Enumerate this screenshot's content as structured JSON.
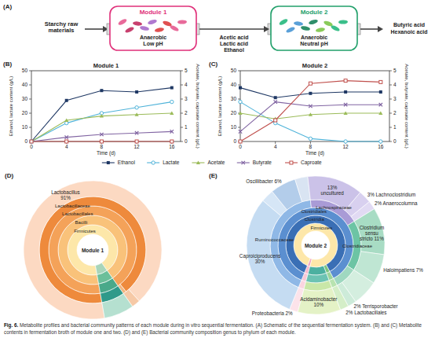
{
  "panel_a": {
    "panel_label": "(A)",
    "input": "Starchy raw materials",
    "modules": [
      {
        "title": "Module 1",
        "color": "#e0307a",
        "conditions": [
          "Anaerobic",
          "Low pH"
        ]
      },
      {
        "title": "Module 2",
        "color": "#22a06b",
        "conditions": [
          "Anaerobic",
          "Neutral pH"
        ]
      }
    ],
    "intermediates": [
      "Acetic acid",
      "Lactic acid",
      "Ethanol"
    ],
    "outputs": [
      "Butyric acid",
      "Hexanoic acid"
    ]
  },
  "chart_data": [
    {
      "type": "line",
      "panel_label": "(B)",
      "title": "Module 1",
      "x_label": "Time (d)",
      "y_label": "Ethanol, lactate content (g/L)",
      "y2_label": "Acetate, butyrate, caproate content (g/L)",
      "x": [
        0,
        4,
        8,
        12,
        16
      ],
      "xlim": [
        0,
        17
      ],
      "xticks": [
        0,
        4,
        8,
        12,
        16
      ],
      "ylim": [
        0,
        50
      ],
      "yticks": [
        0,
        10,
        20,
        30,
        40,
        50
      ],
      "y2lim": [
        0,
        5
      ],
      "y2ticks": [
        0,
        1,
        2,
        3,
        4,
        5
      ],
      "legend": "bottom",
      "series": [
        {
          "name": "Ethanol",
          "color": "#1f3864",
          "marker": "square",
          "values": [
            0,
            29,
            36,
            35,
            38
          ]
        },
        {
          "name": "Lactate",
          "color": "#4fb3d9",
          "marker": "circle-open",
          "values": [
            0,
            13,
            20,
            24,
            28
          ]
        },
        {
          "name": "Acetate",
          "color": "#9bbb59",
          "marker": "triangle",
          "axis": "y2",
          "values": [
            0,
            1.5,
            1.8,
            1.9,
            2.0
          ]
        },
        {
          "name": "Butyrate",
          "color": "#8064a2",
          "marker": "x",
          "axis": "y2",
          "values": [
            0,
            0.3,
            0.5,
            0.6,
            0.7
          ]
        },
        {
          "name": "Caproate",
          "color": "#c0504d",
          "marker": "square-open",
          "axis": "y2",
          "values": [
            0,
            0,
            0,
            0,
            0
          ]
        }
      ]
    },
    {
      "type": "line",
      "panel_label": "(C)",
      "title": "Module 2",
      "x_label": "Time (d)",
      "y_label": "Ethanol, lactate content (g/L)",
      "y2_label": "Acetate, butyrate, caproate content (g/L)",
      "x": [
        0,
        4,
        8,
        12,
        16
      ],
      "xlim": [
        0,
        17
      ],
      "xticks": [
        0,
        4,
        8,
        12,
        16
      ],
      "ylim": [
        0,
        50
      ],
      "yticks": [
        0,
        10,
        20,
        30,
        40,
        50
      ],
      "y2lim": [
        0,
        5
      ],
      "y2ticks": [
        0,
        1,
        2,
        3,
        4,
        5
      ],
      "series": [
        {
          "name": "Ethanol",
          "color": "#1f3864",
          "marker": "square",
          "values": [
            38,
            31,
            34,
            35,
            35
          ]
        },
        {
          "name": "Lactate",
          "color": "#4fb3d9",
          "marker": "circle-open",
          "values": [
            28,
            13,
            2,
            0,
            0
          ]
        },
        {
          "name": "Acetate",
          "color": "#9bbb59",
          "marker": "triangle",
          "axis": "y2",
          "values": [
            2.0,
            1.6,
            1.9,
            2.0,
            2.0
          ]
        },
        {
          "name": "Butyrate",
          "color": "#8064a2",
          "marker": "x",
          "axis": "y2",
          "values": [
            0.7,
            2.8,
            2.5,
            2.6,
            2.6
          ]
        },
        {
          "name": "Caproate",
          "color": "#c0504d",
          "marker": "square-open",
          "axis": "y2",
          "values": [
            0,
            1.5,
            4.1,
            4.3,
            4.2
          ]
        }
      ]
    },
    {
      "type": "sunburst",
      "panel_label": "(D)",
      "title": "Module 1",
      "rings": [
        [
          {
            "label": "Firmicutes",
            "value": 93,
            "color": "#fde7a9"
          },
          {
            "label": null,
            "value": 7,
            "color": "#a8d5ba"
          }
        ],
        [
          {
            "label": "Bacilli",
            "value": 93,
            "color": "#f9c27a"
          },
          {
            "label": null,
            "value": 7,
            "color": "#6cbf9a"
          }
        ],
        [
          {
            "label": "Lactobacillales",
            "value": 93,
            "color": "#f4a259"
          },
          {
            "label": null,
            "value": 7,
            "color": "#4aa98a"
          }
        ],
        [
          {
            "label": "Lactobacillaceae",
            "value": 92,
            "color": "#ee8a3c"
          },
          {
            "label": null,
            "value": 1,
            "color": "#f2b57e"
          },
          {
            "label": null,
            "value": 7,
            "color": "#2f9a8a"
          }
        ],
        [
          {
            "label": "Lactobacillus 91%",
            "value": 91,
            "color": "#fcd9c2"
          },
          {
            "label": null,
            "value": 2,
            "color": "#f6c9a6"
          },
          {
            "label": null,
            "value": 7,
            "color": "#b5e0d0"
          }
        ]
      ]
    },
    {
      "type": "sunburst",
      "panel_label": "(E)",
      "title": "Module 2",
      "rings": [
        [
          {
            "label": null,
            "value": 2,
            "color": "#f4a6c0"
          },
          {
            "label": "Firmicutes",
            "value": 98,
            "color": "#fde7a9"
          }
        ],
        [
          {
            "label": null,
            "value": 2,
            "color": "#f7b8cc"
          },
          {
            "label": "Clostridia",
            "value": 86,
            "color": "#3a6fb5"
          },
          {
            "label": null,
            "value": 2,
            "color": "#7cc47f"
          },
          {
            "label": null,
            "value": 10,
            "color": "#4bb0a0"
          }
        ],
        [
          {
            "label": null,
            "value": 2,
            "color": "#f9c8d6"
          },
          {
            "label": "Clostridiales",
            "value": 86,
            "color": "#5b8fd0"
          },
          {
            "label": null,
            "value": 2,
            "color": "#9bd49a"
          },
          {
            "label": null,
            "value": 10,
            "color": "#6cc3b3"
          }
        ],
        [
          {
            "label": null,
            "value": 2,
            "color": "#fbd5e0"
          },
          {
            "label": "Ruminococcaceae",
            "value": 42,
            "color": "#8fb8e6"
          },
          {
            "label": "Lachnospiraceae",
            "value": 18,
            "color": "#a99bd6"
          },
          {
            "label": "Clostridiaceae",
            "value": 18,
            "color": "#6cc4a4"
          },
          {
            "label": null,
            "value": 8,
            "color": "#9fd8c0"
          },
          {
            "label": null,
            "value": 2,
            "color": "#b8e3b0"
          },
          {
            "label": null,
            "value": 10,
            "color": "#c9e7a8"
          }
        ],
        [
          {
            "label": "Proteobacteria 2%",
            "value": 2,
            "color": "#fce3ea"
          },
          {
            "label": "Caproiciproducens 30%",
            "value": 30,
            "color": "#c5dcf2"
          },
          {
            "label": null,
            "value": 3,
            "color": "#d6e6f6"
          },
          {
            "label": "Oscillibacter 6%",
            "value": 6,
            "color": "#b3cdea"
          },
          {
            "label": null,
            "value": 3,
            "color": "#d9e4f2"
          },
          {
            "label": "13% uncultured",
            "value": 13,
            "color": "#cbc2e8"
          },
          {
            "label": "3% Lachnoclostridium",
            "value": 3,
            "color": "#d8d0ef"
          },
          {
            "label": "2% Anaerocolumna",
            "value": 2,
            "color": "#e1daf3"
          },
          {
            "label": "Clostridium sensu stricto 11%",
            "value": 11,
            "color": "#a8dcc4"
          },
          {
            "label": "Haloimpatiens 7%",
            "value": 7,
            "color": "#bfe6d3"
          },
          {
            "label": null,
            "value": 6,
            "color": "#d4eedf"
          },
          {
            "label": "2% Terrisporobacter",
            "value": 2,
            "color": "#cdebd9"
          },
          {
            "label": "2% Lactobacillales",
            "value": 2,
            "color": "#d4eec8"
          },
          {
            "label": "Acidaminobacter 10%",
            "value": 10,
            "color": "#e4f2c6"
          }
        ]
      ]
    }
  ],
  "caption": {
    "label": "Fig. 6.",
    "text": "Metabolite profiles and bacterial community patterns of each module during in vitro sequential fermentation. (A) Schematic of the sequential fermentation system. (B) and (C) Metabolite contents in fermentation broth of module one and two. (D) and (E) Bacterial community composition genus to phylum of each module."
  }
}
